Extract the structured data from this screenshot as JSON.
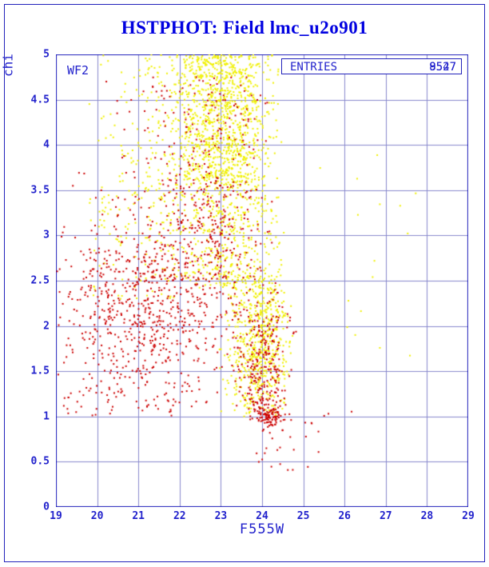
{
  "page": {
    "title": "HSTPHOT: Field lmc_u2o901"
  },
  "chart_data": {
    "type": "scatter",
    "title": "HSTPHOT: Field lmc_u2o901",
    "xlabel": "F555W",
    "ylabel": "chi",
    "xlim": [
      19,
      29
    ],
    "ylim": [
      0,
      5
    ],
    "x_ticks": [
      "19",
      "20",
      "21",
      "22",
      "23",
      "24",
      "25",
      "26",
      "27",
      "28",
      "29"
    ],
    "y_ticks": [
      "0",
      "0.5",
      "1",
      "1.5",
      "2",
      "2.5",
      "3",
      "3.5",
      "4",
      "4.5",
      "5"
    ],
    "grid": true,
    "legend_position": "none",
    "chip_label": "WF2",
    "entries": {
      "label": "ENTRIES",
      "values": [
        "8547",
        "9527"
      ]
    },
    "colors": {
      "frame": "#2222bb",
      "grid": "#8888cc",
      "text": "#2222cc",
      "title": "#0000e0",
      "series": {
        "yellow": "#f0f000",
        "red": "#cc0000"
      }
    },
    "seed": 20250101,
    "point_size": 2,
    "series_note": "dense photometry scatter; distributions estimated from plot",
    "clusters": [
      {
        "series": "yellow",
        "count": 900,
        "x": {
          "type": "normal",
          "mu": 23.1,
          "sigma": 0.6,
          "min": 21.8,
          "max": 24.4
        },
        "y": {
          "type": "uniform",
          "min": 3.6,
          "max": 5.0
        }
      },
      {
        "series": "yellow",
        "count": 350,
        "x": {
          "type": "normal",
          "mu": 22.3,
          "sigma": 1.1,
          "min": 19.8,
          "max": 24.5
        },
        "y": {
          "type": "uniform",
          "min": 3.4,
          "max": 5.0
        }
      },
      {
        "series": "yellow",
        "count": 450,
        "x": {
          "type": "normal",
          "mu": 23.2,
          "sigma": 0.7,
          "min": 21.0,
          "max": 24.6
        },
        "y": {
          "type": "uniform",
          "min": 2.4,
          "max": 3.6
        }
      },
      {
        "series": "yellow",
        "count": 120,
        "x": {
          "type": "uniform",
          "min": 19.8,
          "max": 22.2
        },
        "y": {
          "type": "uniform",
          "min": 2.3,
          "max": 3.6
        }
      },
      {
        "series": "yellow",
        "count": 600,
        "x": {
          "type": "normal",
          "mu": 23.95,
          "sigma": 0.38,
          "min": 22.9,
          "max": 24.75
        },
        "y": {
          "type": "normal",
          "mu": 1.85,
          "sigma": 0.5,
          "min": 1.0,
          "max": 2.55
        }
      },
      {
        "series": "yellow",
        "count": 16,
        "x": {
          "type": "uniform",
          "min": 24.8,
          "max": 27.9
        },
        "y": {
          "type": "uniform",
          "min": 1.6,
          "max": 4.75
        }
      },
      {
        "series": "red",
        "count": 800,
        "x": {
          "type": "normal",
          "mu": 21.3,
          "sigma": 1.2,
          "min": 19.02,
          "max": 23.6
        },
        "y": {
          "type": "normal",
          "mu": 2.25,
          "sigma": 0.62,
          "min": 1.05,
          "max": 3.7
        }
      },
      {
        "series": "red",
        "count": 150,
        "x": {
          "type": "normal",
          "mu": 22.5,
          "sigma": 0.9,
          "min": 20.2,
          "max": 24.2
        },
        "y": {
          "type": "uniform",
          "min": 3.6,
          "max": 4.75
        }
      },
      {
        "series": "red",
        "count": 200,
        "x": {
          "type": "normal",
          "mu": 23.0,
          "sigma": 0.8,
          "min": 21.5,
          "max": 24.3
        },
        "y": {
          "type": "uniform",
          "min": 2.5,
          "max": 3.6
        }
      },
      {
        "series": "red",
        "count": 280,
        "x": {
          "type": "normal",
          "mu": 24.0,
          "sigma": 0.33,
          "min": 23.2,
          "max": 24.9
        },
        "y": {
          "type": "normal",
          "mu": 1.55,
          "sigma": 0.42,
          "min": 0.95,
          "max": 2.5
        }
      },
      {
        "series": "red",
        "count": 90,
        "x": {
          "type": "normal",
          "mu": 24.15,
          "sigma": 0.17,
          "min": 23.75,
          "max": 24.55
        },
        "y": {
          "type": "normal",
          "mu": 1.0,
          "sigma": 0.06,
          "min": 0.88,
          "max": 1.14
        }
      },
      {
        "series": "red",
        "count": 26,
        "x": {
          "type": "uniform",
          "min": 23.7,
          "max": 25.4
        },
        "y": {
          "type": "uniform",
          "min": 0.38,
          "max": 0.95
        }
      },
      {
        "series": "red",
        "count": 30,
        "x": {
          "type": "uniform",
          "min": 19.1,
          "max": 23.0
        },
        "y": {
          "type": "uniform",
          "min": 1.0,
          "max": 1.3
        }
      },
      {
        "series": "red",
        "count": 3,
        "x": {
          "type": "uniform",
          "min": 25.3,
          "max": 26.2
        },
        "y": {
          "type": "uniform",
          "min": 0.7,
          "max": 1.1
        }
      }
    ]
  }
}
